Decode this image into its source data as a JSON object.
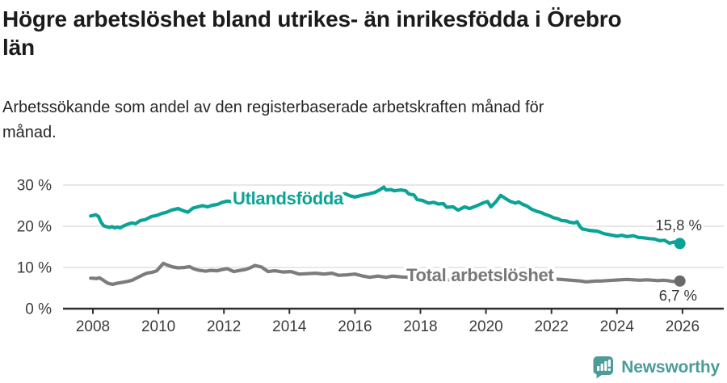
{
  "chart_data": {
    "type": "line",
    "title": "Högre arbetslöshet bland utrikes- än inrikesfödda i Örebro län",
    "title_lines": [
      "Högre arbetslöshet bland utrikes- än inrikesfödda i Örebro",
      "län"
    ],
    "subtitle": "Arbetssökande som andel av den registerbaserade arbetskraften månad för månad.",
    "subtitle_lines": [
      "Arbetssökande som andel av den registerbaserade arbetskraften månad för",
      "månad."
    ],
    "unit": "%",
    "xlim": [
      2007.9,
      2026.3
    ],
    "ylim": [
      0,
      30
    ],
    "grid": "horizontal",
    "legend_position": "inline-labels",
    "x_ticks": [
      {
        "value": 2008,
        "label": "2008"
      },
      {
        "value": 2010,
        "label": "2010"
      },
      {
        "value": 2012,
        "label": "2012"
      },
      {
        "value": 2014,
        "label": "2014"
      },
      {
        "value": 2016,
        "label": "2016"
      },
      {
        "value": 2018,
        "label": "2018"
      },
      {
        "value": 2020,
        "label": "2020"
      },
      {
        "value": 2022,
        "label": "2022"
      },
      {
        "value": 2024,
        "label": "2024"
      },
      {
        "value": 2026,
        "label": "2026"
      }
    ],
    "y_ticks": [
      {
        "value": 0,
        "label": "0 %"
      },
      {
        "value": 10,
        "label": "10 %"
      },
      {
        "value": 20,
        "label": "20 %"
      },
      {
        "value": 30,
        "label": "30 %"
      }
    ],
    "colors": {
      "grid": "#e0e0e0",
      "axis": "#2e2e2e",
      "tick_text": "#3c3c3c",
      "value_label": "#383838",
      "background": "#ffffff"
    },
    "series": [
      {
        "id": "utlandsfodda",
        "name": "Utlandsfödda",
        "color": "#0aa396",
        "label_color": "#0aa396",
        "dot_color": "#0aa396",
        "end_value": 15.8,
        "end_label": "15,8 %",
        "points": [
          [
            2007.93,
            22.5
          ],
          [
            2008.0,
            22.6
          ],
          [
            2008.08,
            22.8
          ],
          [
            2008.17,
            22.4
          ],
          [
            2008.25,
            21.0
          ],
          [
            2008.33,
            20.1
          ],
          [
            2008.42,
            19.9
          ],
          [
            2008.5,
            19.7
          ],
          [
            2008.58,
            19.9
          ],
          [
            2008.67,
            19.6
          ],
          [
            2008.75,
            19.8
          ],
          [
            2008.83,
            19.6
          ],
          [
            2008.92,
            20.0
          ],
          [
            2009.0,
            20.3
          ],
          [
            2009.1,
            20.6
          ],
          [
            2009.2,
            20.8
          ],
          [
            2009.3,
            20.6
          ],
          [
            2009.45,
            21.4
          ],
          [
            2009.6,
            21.6
          ],
          [
            2009.8,
            22.4
          ],
          [
            2009.95,
            22.6
          ],
          [
            2010.1,
            23.1
          ],
          [
            2010.25,
            23.4
          ],
          [
            2010.4,
            23.9
          ],
          [
            2010.6,
            24.3
          ],
          [
            2010.75,
            23.8
          ],
          [
            2010.9,
            23.4
          ],
          [
            2011.05,
            24.4
          ],
          [
            2011.2,
            24.7
          ],
          [
            2011.35,
            25.0
          ],
          [
            2011.5,
            24.7
          ],
          [
            2011.65,
            25.1
          ],
          [
            2011.8,
            25.3
          ],
          [
            2011.95,
            25.8
          ],
          [
            2012.1,
            26.1
          ],
          [
            2012.3,
            25.9
          ],
          [
            2012.5,
            26.1
          ],
          [
            2012.7,
            26.0
          ],
          [
            2012.9,
            26.3
          ],
          [
            2013.1,
            26.2
          ],
          [
            2013.3,
            26.4
          ],
          [
            2013.5,
            26.3
          ],
          [
            2013.7,
            26.5
          ],
          [
            2013.9,
            26.4
          ],
          [
            2014.1,
            26.6
          ],
          [
            2014.3,
            26.5
          ],
          [
            2014.5,
            26.7
          ],
          [
            2014.7,
            26.6
          ],
          [
            2014.9,
            26.8
          ],
          [
            2015.1,
            26.9
          ],
          [
            2015.3,
            27.1
          ],
          [
            2015.5,
            27.5
          ],
          [
            2015.7,
            27.9
          ],
          [
            2015.85,
            27.4
          ],
          [
            2016.0,
            27.1
          ],
          [
            2016.2,
            27.5
          ],
          [
            2016.4,
            27.8
          ],
          [
            2016.6,
            28.2
          ],
          [
            2016.75,
            28.8
          ],
          [
            2016.88,
            29.5
          ],
          [
            2016.95,
            28.8
          ],
          [
            2017.1,
            28.9
          ],
          [
            2017.2,
            28.6
          ],
          [
            2017.4,
            28.8
          ],
          [
            2017.55,
            28.6
          ],
          [
            2017.65,
            27.8
          ],
          [
            2017.8,
            27.6
          ],
          [
            2017.9,
            26.5
          ],
          [
            2018.05,
            26.3
          ],
          [
            2018.25,
            25.6
          ],
          [
            2018.4,
            25.8
          ],
          [
            2018.55,
            25.4
          ],
          [
            2018.7,
            25.5
          ],
          [
            2018.8,
            24.6
          ],
          [
            2019.0,
            24.7
          ],
          [
            2019.15,
            23.9
          ],
          [
            2019.35,
            24.7
          ],
          [
            2019.5,
            24.3
          ],
          [
            2019.7,
            24.9
          ],
          [
            2019.9,
            25.6
          ],
          [
            2020.05,
            26.0
          ],
          [
            2020.15,
            24.7
          ],
          [
            2020.3,
            25.9
          ],
          [
            2020.45,
            27.5
          ],
          [
            2020.6,
            26.7
          ],
          [
            2020.75,
            26.0
          ],
          [
            2020.9,
            25.6
          ],
          [
            2021.0,
            25.9
          ],
          [
            2021.1,
            25.4
          ],
          [
            2021.25,
            24.9
          ],
          [
            2021.4,
            24.1
          ],
          [
            2021.55,
            23.6
          ],
          [
            2021.7,
            23.3
          ],
          [
            2021.8,
            22.9
          ],
          [
            2021.95,
            22.5
          ],
          [
            2022.05,
            22.1
          ],
          [
            2022.2,
            21.8
          ],
          [
            2022.3,
            21.4
          ],
          [
            2022.45,
            21.3
          ],
          [
            2022.55,
            21.0
          ],
          [
            2022.7,
            20.8
          ],
          [
            2022.78,
            21.1
          ],
          [
            2022.88,
            19.8
          ],
          [
            2022.95,
            19.3
          ],
          [
            2023.05,
            19.2
          ],
          [
            2023.15,
            19.0
          ],
          [
            2023.4,
            18.8
          ],
          [
            2023.6,
            18.2
          ],
          [
            2023.8,
            17.9
          ],
          [
            2024.0,
            17.6
          ],
          [
            2024.15,
            17.8
          ],
          [
            2024.3,
            17.5
          ],
          [
            2024.5,
            17.7
          ],
          [
            2024.65,
            17.3
          ],
          [
            2024.8,
            17.2
          ],
          [
            2025.0,
            17.0
          ],
          [
            2025.15,
            16.9
          ],
          [
            2025.3,
            16.5
          ],
          [
            2025.45,
            16.6
          ],
          [
            2025.6,
            15.9
          ],
          [
            2025.75,
            16.2
          ],
          [
            2025.92,
            15.8
          ]
        ]
      },
      {
        "id": "total",
        "name": "Total arbetslöshet",
        "color": "#7c7c7c",
        "label_color": "#787878",
        "dot_color": "#6a6a6a",
        "end_value": 6.7,
        "end_label": "6,7 %",
        "points": [
          [
            2007.93,
            7.4
          ],
          [
            2008.0,
            7.4
          ],
          [
            2008.1,
            7.3
          ],
          [
            2008.2,
            7.5
          ],
          [
            2008.3,
            7.0
          ],
          [
            2008.45,
            6.2
          ],
          [
            2008.6,
            5.9
          ],
          [
            2008.75,
            6.2
          ],
          [
            2008.9,
            6.4
          ],
          [
            2009.05,
            6.6
          ],
          [
            2009.2,
            6.9
          ],
          [
            2009.35,
            7.5
          ],
          [
            2009.5,
            8.1
          ],
          [
            2009.65,
            8.6
          ],
          [
            2009.8,
            8.8
          ],
          [
            2009.95,
            9.2
          ],
          [
            2010.05,
            10.1
          ],
          [
            2010.15,
            11.0
          ],
          [
            2010.3,
            10.5
          ],
          [
            2010.45,
            10.1
          ],
          [
            2010.6,
            9.9
          ],
          [
            2010.8,
            10.0
          ],
          [
            2010.95,
            10.2
          ],
          [
            2011.1,
            9.6
          ],
          [
            2011.25,
            9.3
          ],
          [
            2011.45,
            9.1
          ],
          [
            2011.6,
            9.3
          ],
          [
            2011.8,
            9.2
          ],
          [
            2011.95,
            9.5
          ],
          [
            2012.1,
            9.7
          ],
          [
            2012.3,
            9.0
          ],
          [
            2012.5,
            9.3
          ],
          [
            2012.65,
            9.5
          ],
          [
            2012.8,
            9.9
          ],
          [
            2012.95,
            10.5
          ],
          [
            2013.15,
            10.1
          ],
          [
            2013.35,
            9.0
          ],
          [
            2013.55,
            9.2
          ],
          [
            2013.8,
            8.9
          ],
          [
            2014.05,
            9.0
          ],
          [
            2014.3,
            8.4
          ],
          [
            2014.55,
            8.5
          ],
          [
            2014.8,
            8.6
          ],
          [
            2015.05,
            8.4
          ],
          [
            2015.3,
            8.6
          ],
          [
            2015.5,
            8.1
          ],
          [
            2015.75,
            8.2
          ],
          [
            2016.0,
            8.4
          ],
          [
            2016.25,
            7.9
          ],
          [
            2016.45,
            7.6
          ],
          [
            2016.7,
            7.9
          ],
          [
            2016.95,
            7.6
          ],
          [
            2017.15,
            7.9
          ],
          [
            2017.4,
            7.7
          ],
          [
            2017.6,
            7.6
          ],
          [
            2017.8,
            7.4
          ],
          [
            2018.0,
            7.3
          ],
          [
            2018.3,
            7.2
          ],
          [
            2018.6,
            7.0
          ],
          [
            2018.9,
            7.0
          ],
          [
            2019.2,
            6.9
          ],
          [
            2019.5,
            7.0
          ],
          [
            2019.8,
            7.2
          ],
          [
            2020.1,
            7.8
          ],
          [
            2020.4,
            8.8
          ],
          [
            2020.7,
            8.6
          ],
          [
            2021.0,
            8.3
          ],
          [
            2021.3,
            8.0
          ],
          [
            2021.6,
            7.7
          ],
          [
            2021.9,
            7.4
          ],
          [
            2022.1,
            7.2
          ],
          [
            2022.3,
            7.1
          ],
          [
            2022.45,
            7.0
          ],
          [
            2022.6,
            6.9
          ],
          [
            2022.75,
            6.8
          ],
          [
            2022.9,
            6.7
          ],
          [
            2023.05,
            6.5
          ],
          [
            2023.2,
            6.6
          ],
          [
            2023.35,
            6.7
          ],
          [
            2023.5,
            6.7
          ],
          [
            2023.7,
            6.8
          ],
          [
            2023.9,
            6.9
          ],
          [
            2024.1,
            7.0
          ],
          [
            2024.3,
            7.1
          ],
          [
            2024.5,
            7.0
          ],
          [
            2024.7,
            6.9
          ],
          [
            2024.9,
            7.0
          ],
          [
            2025.1,
            6.9
          ],
          [
            2025.25,
            6.8
          ],
          [
            2025.4,
            6.9
          ],
          [
            2025.55,
            6.8
          ],
          [
            2025.7,
            6.6
          ],
          [
            2025.92,
            6.7
          ]
        ]
      }
    ]
  },
  "footer": {
    "brand": "Newsworthy",
    "brand_color": "#4c9c97"
  }
}
